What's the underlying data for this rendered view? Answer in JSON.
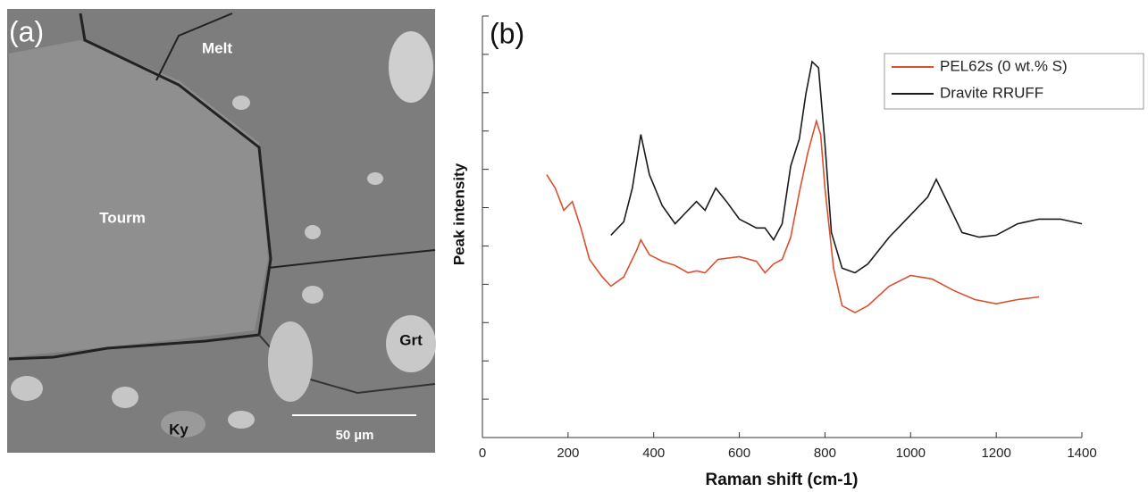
{
  "panel_a": {
    "panel_label": "(a)",
    "labels": [
      "Melt",
      "Tourm",
      "Grt",
      "Ky"
    ],
    "scale_bar": "50 µm"
  },
  "chart_data": {
    "type": "line",
    "panel_label": "(b)",
    "x_label": "Raman shift (cm-1)",
    "y_label": "Peak intensity",
    "xlim": [
      0,
      1400
    ],
    "xticks": [
      0,
      200,
      400,
      600,
      800,
      1000,
      1200,
      1400
    ],
    "ylim": [
      0,
      11
    ],
    "yticks": [
      0,
      1,
      2,
      3,
      4,
      5,
      6,
      7,
      8,
      9,
      10,
      11
    ],
    "legend": "upper right",
    "series": [
      {
        "name": "PEL62s (0 wt.% S)",
        "color": "#d9502e",
        "x": [
          150,
          170,
          190,
          210,
          230,
          250,
          280,
          300,
          330,
          360,
          370,
          390,
          420,
          450,
          480,
          500,
          520,
          550,
          600,
          640,
          660,
          680,
          700,
          720,
          740,
          760,
          780,
          790,
          800,
          820,
          840,
          870,
          900,
          950,
          1000,
          1050,
          1100,
          1150,
          1200,
          1250,
          1300
        ],
        "values": [
          6.86,
          6.51,
          5.93,
          6.16,
          5.47,
          4.65,
          4.19,
          3.95,
          4.19,
          4.88,
          5.16,
          4.77,
          4.6,
          4.49,
          4.3,
          4.35,
          4.3,
          4.65,
          4.72,
          4.6,
          4.3,
          4.53,
          4.65,
          5.23,
          6.4,
          7.44,
          8.26,
          7.91,
          6.51,
          4.42,
          3.44,
          3.26,
          3.44,
          3.95,
          4.23,
          4.14,
          3.84,
          3.6,
          3.49,
          3.6,
          3.67
        ]
      },
      {
        "name": "Dravite RRUFF",
        "color": "#1a1a1a",
        "x": [
          300,
          330,
          350,
          370,
          390,
          420,
          450,
          480,
          500,
          520,
          545,
          570,
          600,
          640,
          660,
          680,
          700,
          720,
          740,
          755,
          770,
          785,
          800,
          815,
          840,
          870,
          900,
          950,
          1000,
          1040,
          1060,
          1080,
          1120,
          1160,
          1200,
          1250,
          1300,
          1350,
          1400
        ],
        "values": [
          5.28,
          5.63,
          6.51,
          7.91,
          6.86,
          6.05,
          5.58,
          5.93,
          6.16,
          5.93,
          6.51,
          6.16,
          5.7,
          5.47,
          5.47,
          5.16,
          5.58,
          7.09,
          7.79,
          8.95,
          9.81,
          9.65,
          7.67,
          5.35,
          4.42,
          4.3,
          4.53,
          5.23,
          5.81,
          6.28,
          6.74,
          6.28,
          5.35,
          5.23,
          5.28,
          5.58,
          5.7,
          5.7,
          5.58
        ]
      }
    ]
  }
}
